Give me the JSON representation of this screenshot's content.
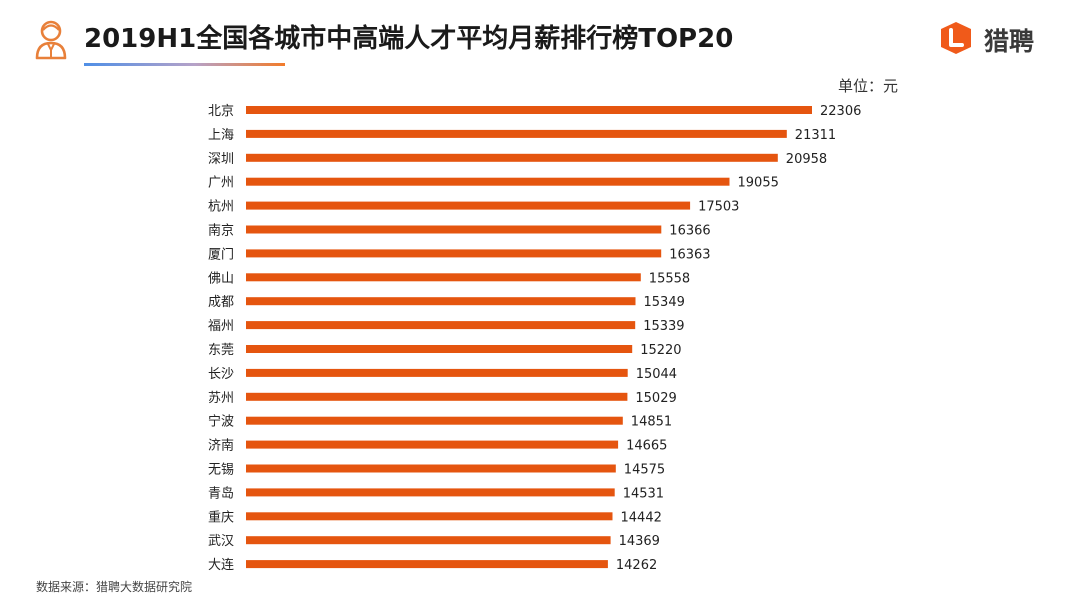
{
  "header": {
    "title": "2019H1全国各城市中高端人才平均月薪排行榜TOP20",
    "brand_name": "猎聘"
  },
  "unit_label": "单位：元",
  "source_note": "数据来源：猎聘大数据研究院",
  "colors": {
    "bar": "#E5550F",
    "underline_start": "#4f8fe6",
    "underline_end": "#f27b2a",
    "brand_accent": "#F05A1A",
    "icon_stroke": "#E8803A"
  },
  "icons": {
    "person": "person-avatar-icon",
    "brand_logo": "liepin-logo-icon"
  },
  "chart_data": {
    "type": "bar",
    "orientation": "horizontal",
    "title": "2019H1全国各城市中高端人才平均月薪排行榜TOP20",
    "unit": "元",
    "categories": [
      "北京",
      "上海",
      "深圳",
      "广州",
      "杭州",
      "南京",
      "厦门",
      "佛山",
      "成都",
      "福州",
      "东莞",
      "长沙",
      "苏州",
      "宁波",
      "济南",
      "无锡",
      "青岛",
      "重庆",
      "武汉",
      "大连"
    ],
    "values": [
      22306,
      21311,
      20958,
      19055,
      17503,
      16366,
      16363,
      15558,
      15349,
      15339,
      15220,
      15044,
      15029,
      14851,
      14665,
      14575,
      14531,
      14442,
      14369,
      14262
    ],
    "data_labels": true,
    "grid": false,
    "legend": "none"
  }
}
